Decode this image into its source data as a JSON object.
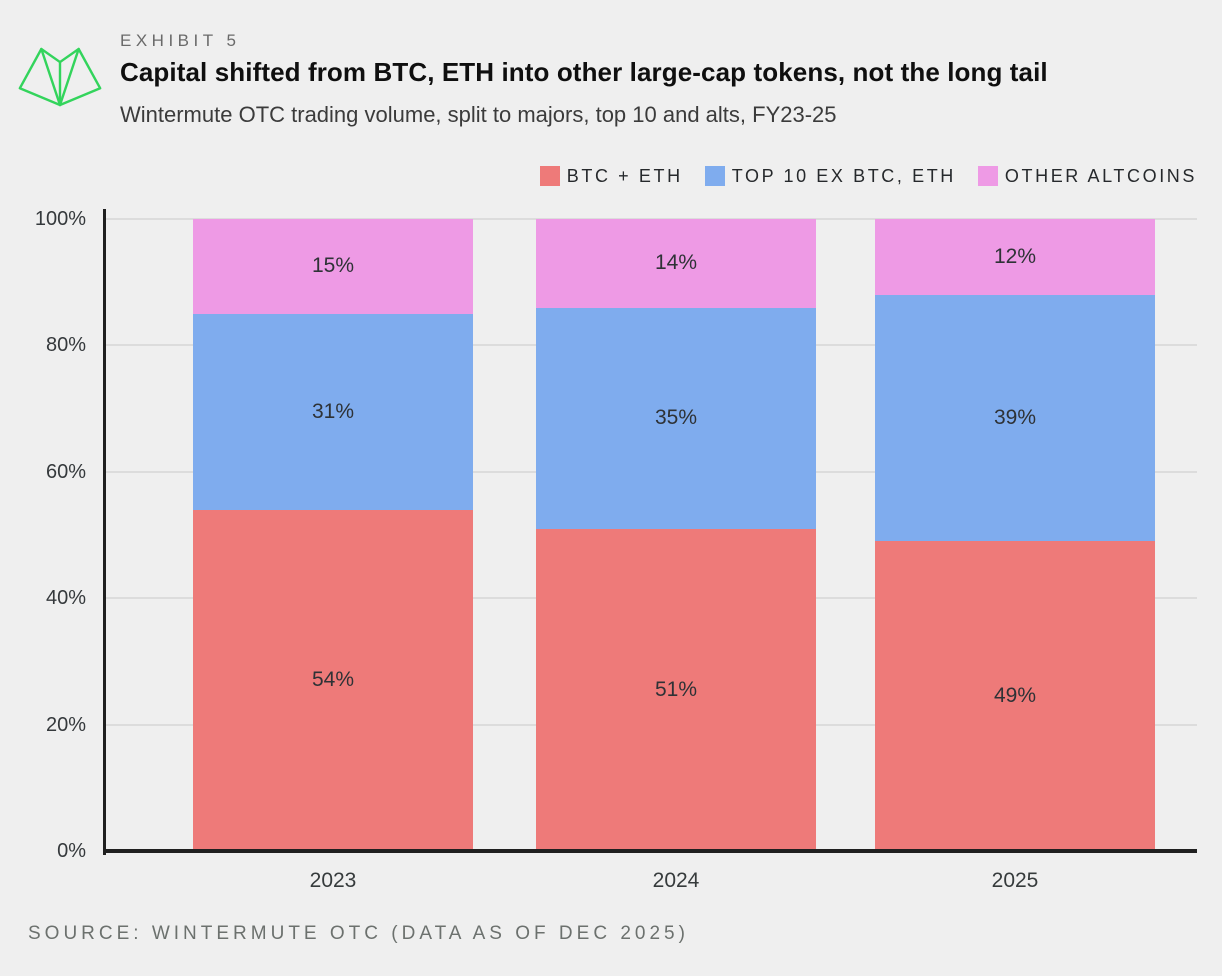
{
  "page": {
    "background": "#efefef"
  },
  "header": {
    "exhibit_label": "EXHIBIT 5",
    "title": "Capital shifted from BTC, ETH into other large-cap tokens, not the long tail",
    "subtitle": "Wintermute OTC trading volume, split to majors, top 10 and alts, FY23-25",
    "logo_color": "#33d45c"
  },
  "chart_data": {
    "type": "bar",
    "stacked": true,
    "orientation": "vertical",
    "categories": [
      "2023",
      "2024",
      "2025"
    ],
    "series": [
      {
        "name": "BTC + ETH",
        "color": "#ee7a79",
        "values": [
          54,
          51,
          49
        ]
      },
      {
        "name": "TOP 10 EX BTC, ETH",
        "color": "#7facee",
        "values": [
          31,
          35,
          39
        ]
      },
      {
        "name": "OTHER ALTCOINS",
        "color": "#ee9ae5",
        "values": [
          15,
          14,
          12
        ]
      }
    ],
    "value_suffix": "%",
    "ylim": [
      0,
      100
    ],
    "yticks": [
      0,
      20,
      40,
      60,
      80,
      100
    ],
    "ytick_labels": [
      "0%",
      "20%",
      "40%",
      "60%",
      "80%",
      "100%"
    ],
    "grid": true,
    "gridline_color": "#dcdcdc",
    "axis_color": "#202020",
    "legend_position": "top-right",
    "title": "Capital shifted from BTC, ETH into other large-cap tokens, not the long tail",
    "subtitle": "Wintermute OTC trading volume, split to majors, top 10 and alts, FY23-25",
    "xlabel": "",
    "ylabel": ""
  },
  "footer": {
    "source": "SOURCE: WINTERMUTE OTC (DATA AS OF DEC 2025)"
  }
}
